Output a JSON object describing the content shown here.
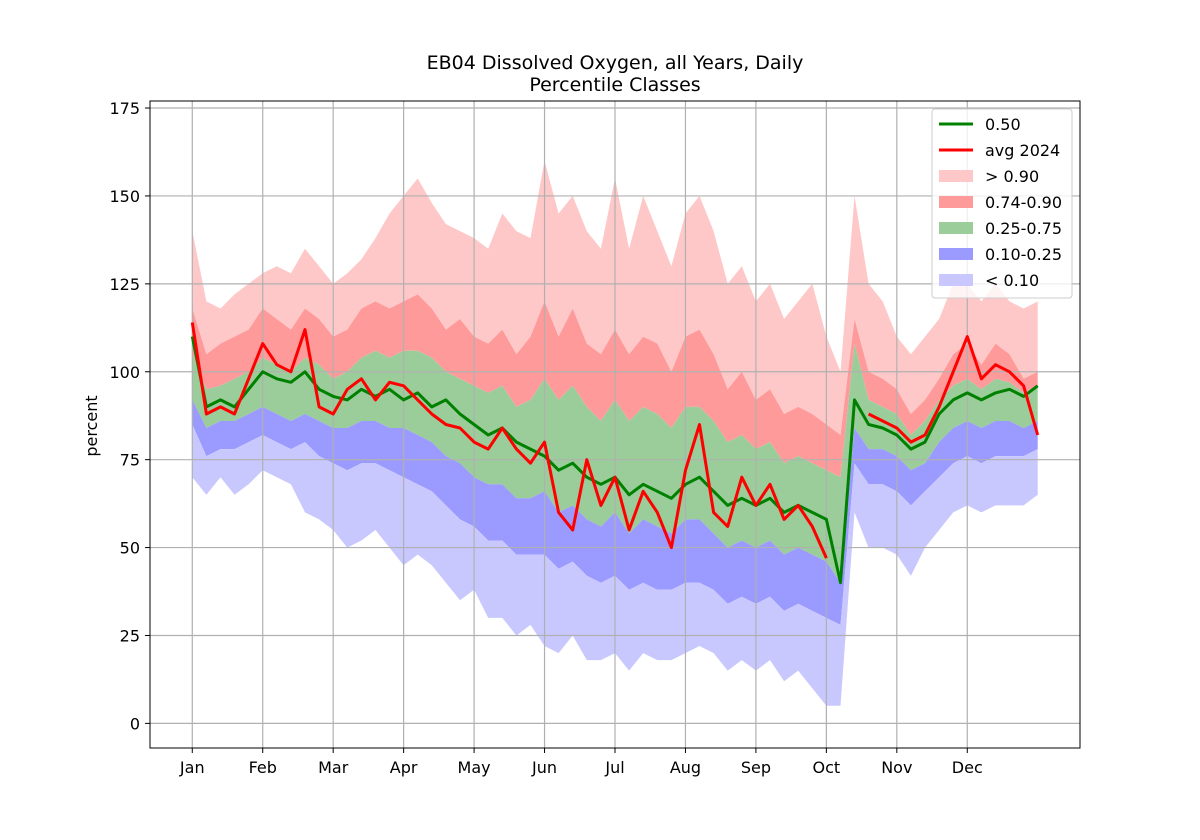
{
  "chart_data": {
    "type": "area",
    "title": "EB04 Dissolved Oxygen, all Years, Daily",
    "subtitle": "Percentile Classes",
    "xlabel": "",
    "ylabel": "percent",
    "ylim": [
      -7,
      177
    ],
    "xlim": [
      -11,
      253
    ],
    "grid": true,
    "legend_position": "top-right",
    "y_ticks": [
      0,
      25,
      50,
      75,
      100,
      125,
      150,
      175
    ],
    "x_ticks": [
      {
        "label": "Jan",
        "day": 1
      },
      {
        "label": "Feb",
        "day": 21
      },
      {
        "label": "Mar",
        "day": 41
      },
      {
        "label": "Apr",
        "day": 61
      },
      {
        "label": "May",
        "day": 81
      },
      {
        "label": "Jun",
        "day": 101
      },
      {
        "label": "Jul",
        "day": 121
      },
      {
        "label": "Aug",
        "day": 141
      },
      {
        "label": "Sep",
        "day": 161
      },
      {
        "label": "Oct",
        "day": 181
      },
      {
        "label": "Nov",
        "day": 201
      },
      {
        "label": "Dec",
        "day": 221
      }
    ],
    "bands": [
      {
        "name": "> 0.90",
        "color": "#ffc8c8",
        "opacity": 1
      },
      {
        "name": "0.74-0.90",
        "color": "#ff9a9a",
        "opacity": 1
      },
      {
        "name": "0.25-0.75",
        "color": "#9acd9a",
        "opacity": 1
      },
      {
        "name": "0.10-0.25",
        "color": "#9a9aff",
        "opacity": 1
      },
      {
        "name": "< 0.10",
        "color": "#c8c8ff",
        "opacity": 1
      }
    ],
    "series": [
      {
        "name": "0.50",
        "color": "#008000"
      },
      {
        "name": "avg 2024",
        "color": "#ff0000"
      }
    ],
    "x_days": [
      1,
      5,
      9,
      13,
      17,
      21,
      25,
      29,
      33,
      37,
      41,
      45,
      49,
      53,
      57,
      61,
      65,
      69,
      73,
      77,
      81,
      85,
      89,
      93,
      97,
      101,
      105,
      109,
      113,
      117,
      121,
      125,
      129,
      133,
      137,
      141,
      145,
      149,
      153,
      157,
      161,
      165,
      169,
      173,
      177,
      181,
      185,
      189,
      193,
      197,
      201,
      205,
      209,
      213,
      217,
      221,
      225,
      229,
      233,
      237,
      241
    ],
    "p_max": [
      140,
      120,
      118,
      122,
      125,
      128,
      130,
      128,
      135,
      130,
      125,
      128,
      132,
      138,
      145,
      150,
      155,
      148,
      142,
      140,
      138,
      135,
      145,
      140,
      138,
      160,
      145,
      150,
      140,
      135,
      155,
      135,
      150,
      140,
      130,
      145,
      150,
      140,
      125,
      130,
      120,
      125,
      115,
      120,
      125,
      110,
      100,
      150,
      125,
      120,
      110,
      105,
      110,
      115,
      125,
      125,
      120,
      125,
      120,
      118,
      120
    ],
    "p90": [
      118,
      105,
      108,
      110,
      112,
      118,
      115,
      112,
      118,
      115,
      110,
      112,
      118,
      120,
      118,
      120,
      122,
      118,
      112,
      115,
      110,
      108,
      112,
      105,
      110,
      120,
      110,
      118,
      108,
      105,
      112,
      105,
      110,
      108,
      100,
      110,
      112,
      105,
      95,
      100,
      92,
      95,
      88,
      90,
      88,
      85,
      82,
      115,
      100,
      98,
      95,
      88,
      92,
      98,
      105,
      108,
      102,
      108,
      105,
      98,
      100
    ],
    "p75": [
      105,
      95,
      96,
      98,
      100,
      104,
      102,
      100,
      104,
      102,
      98,
      100,
      104,
      106,
      104,
      106,
      106,
      104,
      100,
      98,
      96,
      94,
      96,
      90,
      92,
      98,
      92,
      96,
      90,
      86,
      92,
      86,
      90,
      88,
      84,
      90,
      90,
      86,
      80,
      82,
      78,
      80,
      74,
      76,
      74,
      72,
      70,
      108,
      92,
      90,
      88,
      82,
      86,
      92,
      96,
      98,
      95,
      98,
      97,
      94,
      96
    ],
    "p25": [
      92,
      84,
      86,
      86,
      88,
      90,
      88,
      86,
      88,
      86,
      84,
      84,
      86,
      86,
      84,
      84,
      82,
      80,
      76,
      74,
      70,
      68,
      68,
      64,
      64,
      66,
      60,
      62,
      58,
      56,
      60,
      54,
      58,
      56,
      54,
      58,
      58,
      54,
      50,
      52,
      50,
      52,
      48,
      50,
      48,
      46,
      40,
      84,
      78,
      78,
      76,
      72,
      74,
      80,
      84,
      86,
      84,
      86,
      86,
      84,
      86
    ],
    "p10": [
      85,
      76,
      78,
      78,
      80,
      82,
      80,
      78,
      80,
      76,
      74,
      72,
      74,
      74,
      72,
      70,
      68,
      66,
      62,
      58,
      56,
      52,
      52,
      48,
      48,
      48,
      44,
      46,
      42,
      40,
      42,
      38,
      40,
      38,
      38,
      40,
      40,
      38,
      34,
      36,
      34,
      36,
      32,
      34,
      32,
      30,
      28,
      74,
      68,
      68,
      66,
      62,
      66,
      70,
      74,
      76,
      74,
      76,
      76,
      76,
      78
    ],
    "p_min": [
      70,
      65,
      70,
      65,
      68,
      72,
      70,
      68,
      60,
      58,
      55,
      50,
      52,
      55,
      50,
      45,
      48,
      45,
      40,
      35,
      38,
      30,
      30,
      25,
      28,
      22,
      20,
      25,
      18,
      18,
      20,
      15,
      20,
      18,
      18,
      20,
      22,
      20,
      15,
      18,
      15,
      18,
      12,
      15,
      10,
      5,
      5,
      60,
      50,
      50,
      48,
      42,
      50,
      55,
      60,
      62,
      60,
      62,
      62,
      62,
      65
    ],
    "median": [
      110,
      90,
      92,
      90,
      95,
      100,
      98,
      97,
      100,
      95,
      93,
      92,
      95,
      93,
      95,
      92,
      94,
      90,
      92,
      88,
      85,
      82,
      84,
      80,
      78,
      76,
      72,
      74,
      70,
      68,
      70,
      65,
      68,
      66,
      64,
      68,
      70,
      66,
      62,
      64,
      62,
      64,
      60,
      62,
      60,
      58,
      40,
      92,
      85,
      84,
      82,
      78,
      80,
      88,
      92,
      94,
      92,
      94,
      95,
      93,
      96
    ],
    "avg_2024": [
      114,
      88,
      90,
      88,
      98,
      108,
      102,
      100,
      112,
      90,
      88,
      95,
      98,
      92,
      97,
      96,
      92,
      88,
      85,
      84,
      80,
      78,
      84,
      78,
      74,
      80,
      60,
      55,
      75,
      62,
      70,
      55,
      66,
      60,
      50,
      72,
      85,
      60,
      56,
      70,
      62,
      68,
      58,
      62,
      56,
      47,
      null,
      null,
      88,
      86,
      84,
      80,
      82,
      90,
      100,
      110,
      98,
      102,
      100,
      96,
      82
    ]
  }
}
